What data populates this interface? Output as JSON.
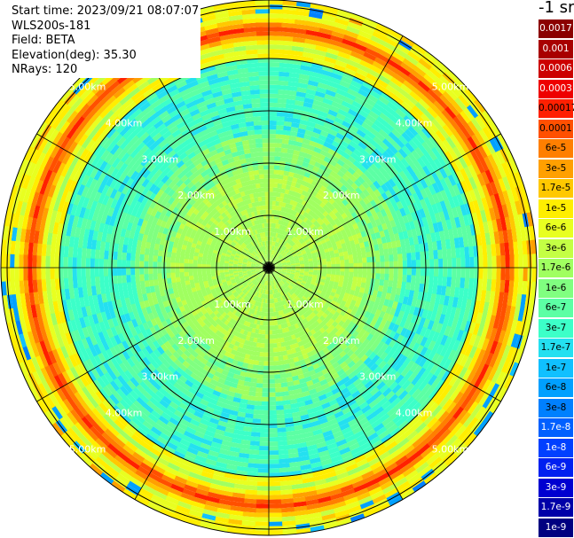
{
  "info": {
    "start_time": "Start time: 2023/09/21 08:07:07",
    "instrument": "WLS200s-181",
    "field": "Field: BETA",
    "elevation": "Elevation(deg): 35.30",
    "nrays": "NRays: 120"
  },
  "colorbar": {
    "unit_label": "-1 sr",
    "labels": [
      "0.0017",
      "0.001",
      "0.0006",
      "0.0003",
      "0.00017",
      "0.0001",
      "6e-5",
      "3e-5",
      "1.7e-5",
      "1e-5",
      "6e-6",
      "3e-6",
      "1.7e-6",
      "1e-6",
      "6e-7",
      "3e-7",
      "1.7e-7",
      "1e-7",
      "6e-8",
      "3e-8",
      "1.7e-8",
      "1e-8",
      "6e-9",
      "3e-9",
      "1.7e-9",
      "1e-9"
    ],
    "colors": [
      "#8b0000",
      "#a80000",
      "#cc0000",
      "#ee0000",
      "#ff2000",
      "#ff5000",
      "#ff7f00",
      "#ffa000",
      "#ffc800",
      "#ffee00",
      "#e8ff20",
      "#c4ff44",
      "#a0ff60",
      "#80ff80",
      "#5cffa4",
      "#3cffc8",
      "#24e0f0",
      "#10c0ff",
      "#00a0ff",
      "#0080ff",
      "#0060ff",
      "#0040ff",
      "#0020f0",
      "#0000d0",
      "#0000a8",
      "#000080"
    ],
    "text_colors": [
      "#ffffff",
      "#ffffff",
      "#ffffff",
      "#ffffff",
      "#000000",
      "#000000",
      "#000000",
      "#000000",
      "#000000",
      "#000000",
      "#000000",
      "#000000",
      "#000000",
      "#000000",
      "#000000",
      "#000000",
      "#000000",
      "#000000",
      "#000000",
      "#000000",
      "#ffffff",
      "#ffffff",
      "#ffffff",
      "#ffffff",
      "#ffffff",
      "#ffffff"
    ]
  },
  "plot": {
    "range_labels": [
      "1.00km",
      "2.00km",
      "3.00km",
      "4.00km",
      "5.00km"
    ]
  }
}
